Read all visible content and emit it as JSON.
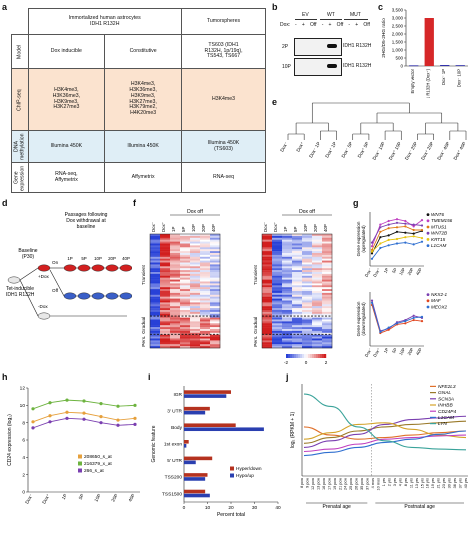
{
  "panel_letters": [
    "a",
    "b",
    "c",
    "d",
    "e",
    "f",
    "g",
    "h",
    "i",
    "j"
  ],
  "panel_a": {
    "header_left": "Immortalized human astrocytes\nIDH1 R132H",
    "header_right": "Tumorspheres",
    "row_labels": [
      "Model",
      "ChIP-seq",
      "DNA\nmethylation",
      "Gene\nexpression"
    ],
    "model": [
      "Dox inducible",
      "Constitutive",
      "TS603 (IDH1\nR132H, 1p/19q),\nTS543, TS667"
    ],
    "chip": [
      "H3K4me3,\nH3K36me3,\nH3K9me3,\nH3K27me3",
      "H3K4me3,\nH3K36me3,\nH3K9me3,\nH3K27me3,\nH3K79me2,\nH4K20me3",
      "H3K4me3"
    ],
    "methylation": [
      "Illumina 450K",
      "Illumina 450K",
      "Illumina 450K\n(TS603)"
    ],
    "expression": [
      "RNA-seq,\nAffymetrix",
      "Affymetrix",
      "RNA-seq"
    ],
    "colors": {
      "model": "#ffffff",
      "chip": "#fbe3cf",
      "methylation": "#dfeef6",
      "expression": "#ffffff"
    }
  },
  "panel_b": {
    "lanes": [
      "EV",
      "WT",
      "MUT"
    ],
    "dox_label": "Dox:",
    "dox_values": [
      "-",
      "+",
      "Off",
      "-",
      "+",
      "Off",
      "-",
      "+",
      "Off"
    ],
    "rows": [
      "2P",
      "10P"
    ],
    "band_labels": [
      "IDH1 R132H",
      "IDH1 R132H"
    ]
  },
  "panel_c": {
    "ylabel": "2HG/D5-2HG ratio",
    "yticks": [
      "0",
      "500",
      "1,000",
      "1,500",
      "2,000",
      "2,500",
      "3,000",
      "3,500"
    ],
    "colors": [
      "#2a2aa8",
      "#d62728",
      "#2a2aa8",
      "#2a2aa8"
    ]
  },
  "panel_d": {
    "title_line1": "Passages following",
    "title_line2": "Dox withdrawal at",
    "title_line3": "baseline",
    "baseline": "Baseline\n(P30)",
    "tet": "Tet-inducible\nIDH1 R132H",
    "plus_dox": "+Dox",
    "minus_dox": "-Dox",
    "on": "On",
    "off": "Off",
    "passages": [
      "1P",
      "5P",
      "10P",
      "20P",
      "40P"
    ]
  },
  "panel_e": {
    "leaves": [
      "Dox⁻",
      "Dox⁺",
      "Dox⁻ 1P",
      "Dox⁺ 1P",
      "Dox⁻ 5P",
      "Dox⁺ 5P",
      "Dox⁻ 10P",
      "Dox⁺ 10P",
      "Dox⁻ 20P",
      "Dox⁺ 20P",
      "Dox⁻ 40P",
      "Dox⁺ 40P"
    ]
  },
  "panel_f": {
    "col_labels": [
      "Dox⁻",
      "Dox⁺",
      "1P",
      "5P",
      "10P",
      "20P",
      "40P"
    ],
    "doxoff": "Dox",
    "doxoff_sup": "off",
    "left_sections": [
      "Transient",
      "Gradual",
      "Pers."
    ],
    "right_sections": [
      "Transient",
      "Gradual",
      "Pers."
    ],
    "scale": [
      "-2",
      "0",
      "2"
    ]
  },
  "panel_g": {
    "ylabel_top": "Gene expression\n(upregulated)",
    "ylabel_bottom": "Gene expression\n(downregulated)",
    "x": [
      "Dox⁻",
      "Dox⁺",
      "1P",
      "5P",
      "10P",
      "20P",
      "40P"
    ],
    "up_legend": [
      "WNT6",
      "TMEM156",
      "MTUS1",
      "WNT2B",
      "KRT15",
      "L1CAM"
    ],
    "up_colors": [
      "#111111",
      "#c040c0",
      "#e07a14",
      "#7a3fb0",
      "#e6c40f",
      "#2f6fd0"
    ],
    "down_legend": [
      "NKX2-1",
      "MAF",
      "MEOX2"
    ],
    "down_colors": [
      "#7a3fb0",
      "#e0451f",
      "#2f6fd0"
    ],
    "up_series": [
      [
        2.4,
        4.2,
        4.4,
        4.8,
        4.7,
        4.6,
        4.9
      ],
      [
        3.2,
        5.6,
        6.0,
        6.2,
        6.0,
        5.4,
        6.1
      ],
      [
        2.8,
        4.8,
        5.2,
        5.3,
        5.4,
        5.0,
        5.0
      ],
      [
        3.6,
        5.3,
        5.6,
        5.8,
        5.7,
        5.6,
        5.5
      ],
      [
        2.6,
        3.5,
        3.9,
        4.0,
        4.2,
        4.3,
        4.1
      ],
      [
        1.8,
        3.0,
        3.3,
        3.5,
        3.6,
        3.4,
        3.7
      ]
    ],
    "down_series": [
      [
        5.2,
        2.4,
        2.6,
        3.2,
        3.4,
        3.8,
        3.6
      ],
      [
        4.8,
        2.2,
        2.5,
        3.0,
        3.1,
        3.4,
        3.3
      ],
      [
        5.0,
        2.3,
        2.7,
        3.1,
        3.3,
        3.6,
        3.7
      ]
    ]
  },
  "panel_h": {
    "ylabel": "CD24 expression (log₂)",
    "x": [
      "Dox⁻",
      "Dox⁺",
      "1P",
      "5P",
      "10P",
      "20P",
      "40P"
    ],
    "yticks": [
      "0",
      "2",
      "4",
      "6",
      "8",
      "10",
      "12"
    ],
    "series": [
      {
        "name": "208650_s_at",
        "color": "#e6a03c",
        "values": [
          8.1,
          8.8,
          9.2,
          9.1,
          8.7,
          8.3,
          8.5
        ]
      },
      {
        "name": "216379_x_at",
        "color": "#6db33f",
        "values": [
          9.6,
          10.3,
          10.6,
          10.5,
          10.2,
          9.9,
          10.0
        ]
      },
      {
        "name": "266_s_at",
        "color": "#7a3fb0",
        "values": [
          7.4,
          8.1,
          8.5,
          8.4,
          8.0,
          7.7,
          7.8
        ]
      }
    ]
  },
  "panel_i": {
    "ylabel": "Genomic feature",
    "xlabel": "Percent total",
    "categories": [
      "IGR",
      "3' UTR",
      "Body",
      "1st exon",
      "5' UTR",
      "TSS200",
      "TSS1500"
    ],
    "xticks": [
      "0",
      "10",
      "20",
      "30",
      "40"
    ],
    "series": [
      {
        "name": "Hyper/down",
        "color": "#b5321f",
        "values": [
          20,
          11,
          22,
          2,
          12,
          10,
          9
        ]
      },
      {
        "name": "Hypo/up",
        "color": "#2a3fb0",
        "values": [
          18,
          9,
          34,
          1,
          5,
          9,
          11
        ]
      }
    ]
  },
  "panel_j": {
    "ylabel": "log₂ (RPKM + 1)",
    "prenatal": "Prenatal age",
    "postnatal": "Postnatal age",
    "x_ticks": [
      "8 pcw",
      "9 pcw",
      "12 pcw",
      "13 pcw",
      "16 pcw",
      "17 pcw",
      "19 pcw",
      "21 pcw",
      "24 pcw",
      "25 pcw",
      "26 pcw",
      "35 pcw",
      "37 pcw",
      "4 mos",
      "10 mos",
      "1 yrs",
      "2 yrs",
      "3 yrs",
      "4 yrs",
      "8 yrs",
      "11 yrs",
      "13 yrs",
      "15 yrs",
      "18 yrs",
      "19 yrs",
      "21 yrs",
      "23 yrs",
      "30 yrs",
      "36 yrs",
      "37 yrs",
      "40 yrs"
    ],
    "legend": [
      "NFE2L3",
      "GNAL",
      "SCN3A",
      "INHBB",
      "CD24P4",
      "L1CAM",
      "LYN"
    ],
    "colors": [
      "#e0702a",
      "#9a7a2a",
      "#7a3fb0",
      "#d4a32a",
      "#c040c0",
      "#2f6fd0",
      "#3aa39a"
    ]
  },
  "chart_data": [
    {
      "type": "bar",
      "title": "",
      "ylabel": "2HG/D5-2HG ratio",
      "categories": [
        "Empty vector",
        "IDH1 R132H (Dox⁺)",
        "Dox⁻ 1P",
        "Dox⁻ 10P"
      ],
      "values": [
        40,
        3000,
        60,
        50
      ],
      "ylim": [
        0,
        3500
      ]
    },
    {
      "type": "line",
      "ylabel": "CD24 expression (log₂)",
      "x": [
        "Dox⁻",
        "Dox⁺",
        "1P",
        "5P",
        "10P",
        "20P",
        "40P"
      ],
      "series": [
        {
          "name": "208650_s_at",
          "values": [
            8.1,
            8.8,
            9.2,
            9.1,
            8.7,
            8.3,
            8.5
          ]
        },
        {
          "name": "216379_x_at",
          "values": [
            9.6,
            10.3,
            10.6,
            10.5,
            10.2,
            9.9,
            10.0
          ]
        },
        {
          "name": "266_s_at",
          "values": [
            7.4,
            8.1,
            8.5,
            8.4,
            8.0,
            7.7,
            7.8
          ]
        }
      ],
      "ylim": [
        0,
        12
      ]
    },
    {
      "type": "bar",
      "xlabel": "Percent total",
      "ylabel": "Genomic feature",
      "categories": [
        "IGR",
        "3' UTR",
        "Body",
        "1st exon",
        "5' UTR",
        "TSS200",
        "TSS1500"
      ],
      "series": [
        {
          "name": "Hyper/down",
          "values": [
            20,
            11,
            22,
            2,
            12,
            10,
            9
          ]
        },
        {
          "name": "Hypo/up",
          "values": [
            18,
            9,
            34,
            1,
            5,
            9,
            11
          ]
        }
      ],
      "xlim": [
        0,
        40
      ]
    }
  ]
}
